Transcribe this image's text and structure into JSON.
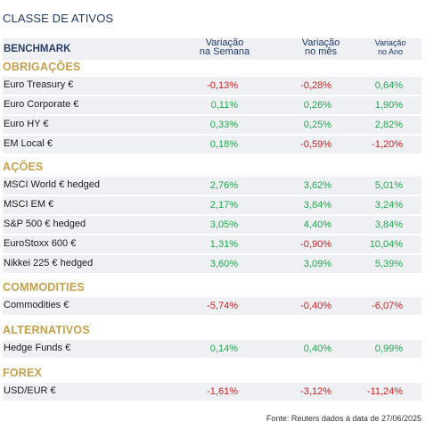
{
  "title": "CLASSE DE ATIVOS",
  "header": {
    "benchmark": "BENCHMARK",
    "col1_line1": "Variação",
    "col1_line2": "na Semana",
    "col2_line1": "Variação",
    "col2_line2": "no mês",
    "col3_line1": "Variação",
    "col3_line2": "no Ano"
  },
  "sections": [
    {
      "name": "OBRIGAÇÕES",
      "rows": [
        {
          "label": "Euro Treasury €",
          "week": "-0,13%",
          "month": "-0,28%",
          "year": "0,64%"
        },
        {
          "label": "Euro Corporate €",
          "week": "0,11%",
          "month": "0,26%",
          "year": "1,90%"
        },
        {
          "label": "Euro HY €",
          "week": "0,33%",
          "month": "0,25%",
          "year": "2,82%"
        },
        {
          "label": "EM Local €",
          "week": "0,18%",
          "month": "-0,59%",
          "year": "-1,20%"
        }
      ]
    },
    {
      "name": "AÇÕES",
      "rows": [
        {
          "label": "MSCI World € hedged",
          "week": "2,76%",
          "month": "3,62%",
          "year": "5,01%"
        },
        {
          "label": "MSCI EM €",
          "week": "2,17%",
          "month": "3,84%",
          "year": "3,24%"
        },
        {
          "label": "S&P 500 € hedged",
          "week": "3,05%",
          "month": "4,40%",
          "year": "3,84%"
        },
        {
          "label": "EuroStoxx 600 €",
          "week": "1,31%",
          "month": "-0,90%",
          "year": "10,04%"
        },
        {
          "label": "Nikkei 225 € hedged",
          "week": "3,60%",
          "month": "3,09%",
          "year": "5,39%"
        }
      ]
    },
    {
      "name": "COMMODITIES",
      "rows": [
        {
          "label": "Commodities €",
          "week": "-5,74%",
          "month": "-0,40%",
          "year": "-6,07%"
        }
      ]
    },
    {
      "name": "ALTERNATIVOS",
      "rows": [
        {
          "label": "Hedge Funds €",
          "week": "0,14%",
          "month": "0,40%",
          "year": "0,99%"
        }
      ]
    },
    {
      "name": "FOREX",
      "rows": [
        {
          "label": "USD/EUR €",
          "week": "-1,61%",
          "month": "-3,12%",
          "year": "-11,24%"
        }
      ]
    }
  ],
  "footer": "Fonte: Reuters dados à data de 27/06/2025",
  "colors": {
    "positive": "#1faa4a",
    "negative": "#d62020",
    "section": "#c6a04d",
    "header": "#1f3a68"
  }
}
